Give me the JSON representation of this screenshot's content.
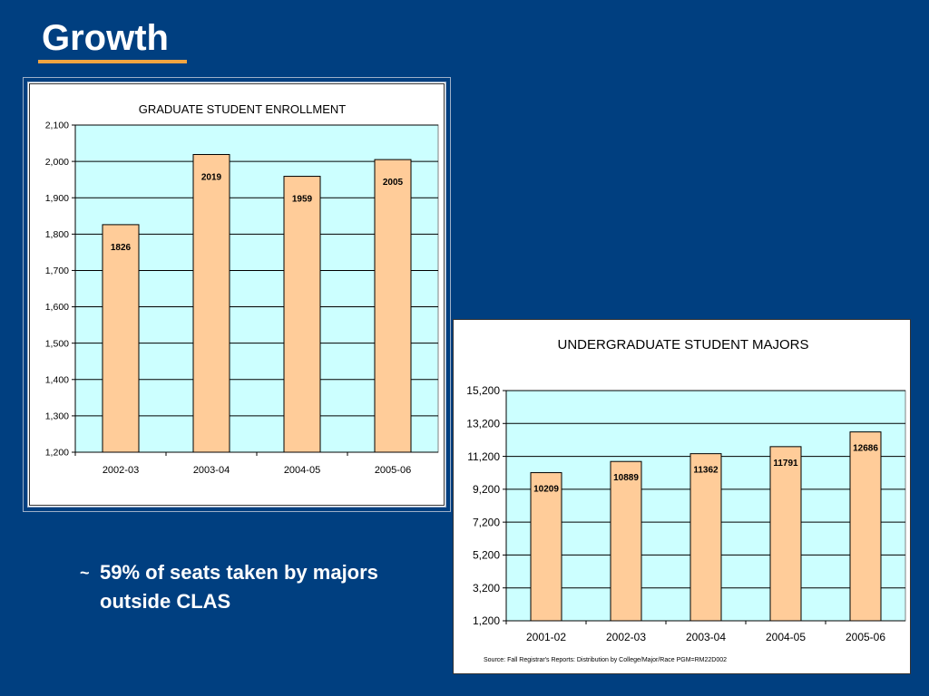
{
  "slide": {
    "title": "Growth",
    "bullet_mark": "~",
    "bullet_text": "59% of seats taken by majors outside CLAS"
  },
  "colors": {
    "background": "#003f80",
    "title_underline": "#f2a541",
    "plot_area": "#ccffff",
    "bar_fill": "#ffcc99",
    "bar_stroke": "#000000"
  },
  "chart_data": [
    {
      "id": "grad",
      "type": "bar",
      "title": "GRADUATE STUDENT ENROLLMENT",
      "categories": [
        "2002-03",
        "2003-04",
        "2004-05",
        "2005-06"
      ],
      "values": [
        1826,
        2019,
        1959,
        2005
      ],
      "data_labels": [
        "1826",
        "2019",
        "1959",
        "2005"
      ],
      "ylim": [
        1200,
        2100
      ],
      "yticks": [
        1200,
        1300,
        1400,
        1500,
        1600,
        1700,
        1800,
        1900,
        2000,
        2100
      ],
      "ytick_labels": [
        "1,200",
        "1,300",
        "1,400",
        "1,500",
        "1,600",
        "1,700",
        "1,800",
        "1,900",
        "2,000",
        "2,100"
      ],
      "grid": true,
      "xlabel": "",
      "ylabel": ""
    },
    {
      "id": "undergrad",
      "type": "bar",
      "title": "UNDERGRADUATE STUDENT MAJORS",
      "categories": [
        "2001-02",
        "2002-03",
        "2003-04",
        "2004-05",
        "2005-06"
      ],
      "values": [
        10209,
        10889,
        11362,
        11791,
        12686
      ],
      "data_labels": [
        "10209",
        "10889",
        "11362",
        "11791",
        "12686"
      ],
      "ylim": [
        1200,
        15200
      ],
      "yticks": [
        1200,
        3200,
        5200,
        7200,
        9200,
        11200,
        13200,
        15200
      ],
      "ytick_labels": [
        "1,200",
        "3,200",
        "5,200",
        "7,200",
        "9,200",
        "11,200",
        "13,200",
        "15,200"
      ],
      "grid": true,
      "xlabel": "",
      "ylabel": "",
      "source_note": "Source: Fall Registrar's Reports: Distribution by College/Major/Race   PGM=RM22D002"
    }
  ]
}
